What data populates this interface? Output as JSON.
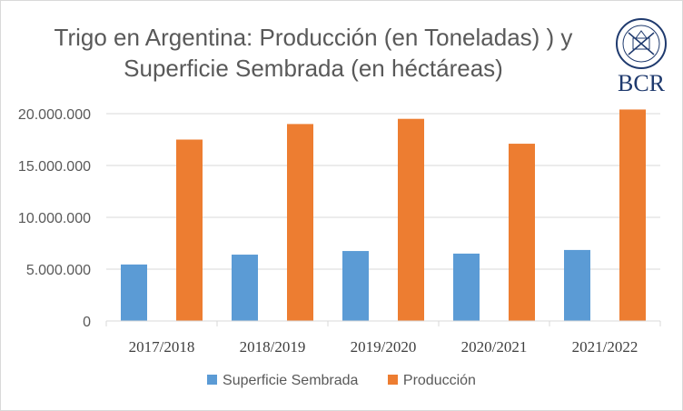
{
  "chart_data": {
    "type": "bar",
    "title_line1": "Trigo en Argentina: Producción (en Toneladas) ) y",
    "title_line2": "Superficie Sembrada (en héctáreas)",
    "logo_text": "BCR",
    "categories": [
      "2017/2018",
      "2018/2019",
      "2019/2020",
      "2020/2021",
      "2021/2022"
    ],
    "series": [
      {
        "name": "Superficie Sembrada",
        "color": "#5b9bd5",
        "values": [
          5450000,
          6400000,
          6750000,
          6500000,
          6850000
        ]
      },
      {
        "name": "Producción",
        "color": "#ed7d31",
        "values": [
          17500000,
          19000000,
          19500000,
          17100000,
          20400000
        ]
      }
    ],
    "y_ticks": [
      "0",
      "5.000.000",
      "10.000.000",
      "15.000.000",
      "20.000.000"
    ],
    "ylim": [
      0,
      20000000
    ],
    "grid": true,
    "legend_position": "bottom"
  }
}
